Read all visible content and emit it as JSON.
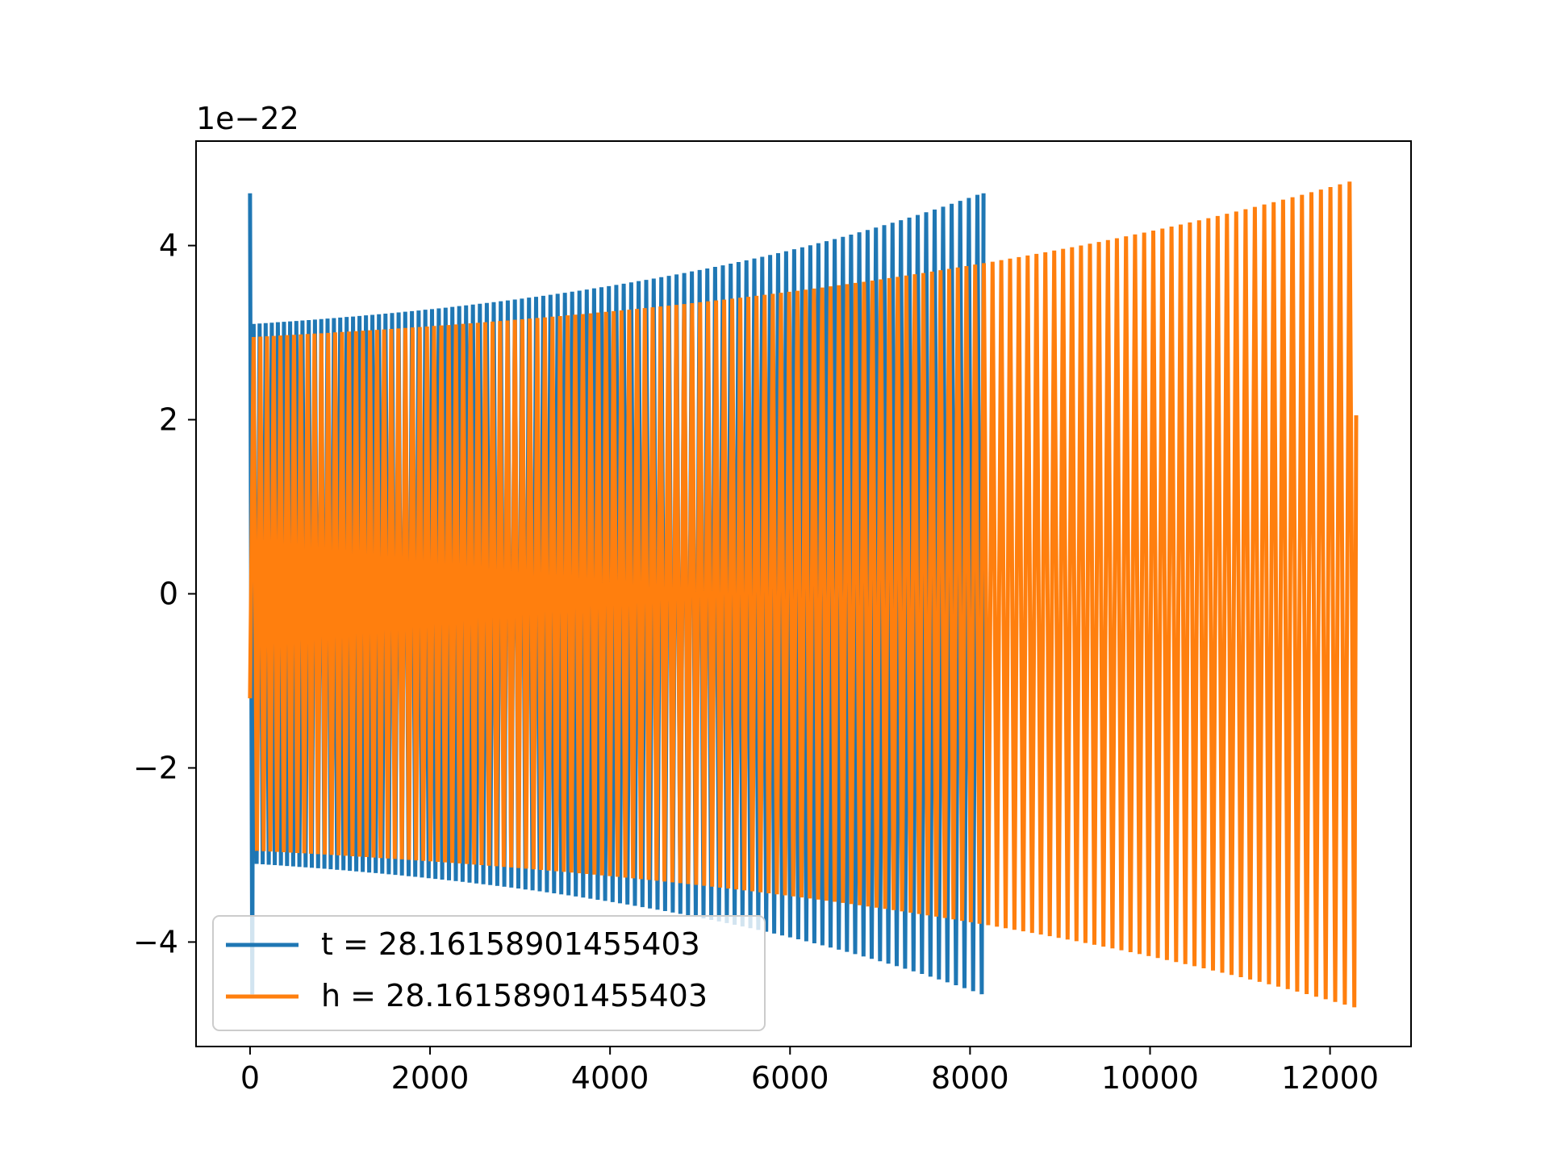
{
  "chart_data": {
    "type": "line",
    "title": "",
    "xlabel": "",
    "ylabel": "",
    "y_scale_label": "1e−22",
    "y_scale": 1e-22,
    "xlim": [
      -600,
      12900
    ],
    "ylim": [
      -5.2,
      5.2
    ],
    "x_ticks": [
      {
        "value": 0,
        "label": "0"
      },
      {
        "value": 2000,
        "label": "2000"
      },
      {
        "value": 4000,
        "label": "4000"
      },
      {
        "value": 6000,
        "label": "6000"
      },
      {
        "value": 8000,
        "label": "8000"
      },
      {
        "value": 10000,
        "label": "10000"
      },
      {
        "value": 12000,
        "label": "12000"
      }
    ],
    "y_ticks": [
      {
        "value": 4,
        "label": "4"
      },
      {
        "value": 2,
        "label": "2"
      },
      {
        "value": 0,
        "label": "0"
      },
      {
        "value": -2,
        "label": "−2"
      },
      {
        "value": -4,
        "label": "−4"
      }
    ],
    "grid": false,
    "legend_position": "lower-left",
    "series": [
      {
        "name": "t = 28.16158901455403",
        "color": "#1f77b4",
        "waveform": "chirp",
        "x_start": 0,
        "x_end": 8150,
        "cycles": 100,
        "amplitude_start": 3.1,
        "amplitude_end": 4.6,
        "initial_spike": [
          4.6,
          -4.6
        ],
        "final_value": 4.6
      },
      {
        "name": "h = 28.16158901455403",
        "color": "#ff7f0e",
        "waveform": "chirp",
        "x_start": 0,
        "x_end": 12290,
        "cycles": 136,
        "amplitude_start": 2.95,
        "amplitude_end": 4.75,
        "initial_value": -1.2,
        "final_value": 2.05
      }
    ]
  }
}
